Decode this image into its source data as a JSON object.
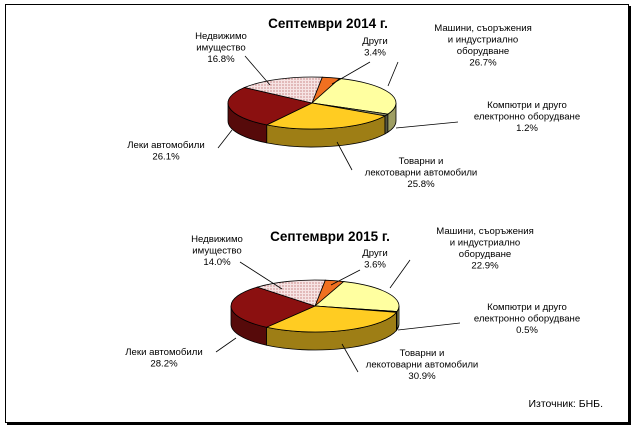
{
  "chart_data": [
    {
      "type": "pie",
      "title": "Септември 2014 г.",
      "slices": [
        {
          "name_lines": [
            "Други"
          ],
          "value": 3.4,
          "value_label": "3.4%",
          "color": "#F07020"
        },
        {
          "name_lines": [
            "Машини, съоръжения",
            "и индустриално",
            "оборудване"
          ],
          "value": 26.7,
          "value_label": "26.7%",
          "color": "#FFFFA0"
        },
        {
          "name_lines": [
            "Компютри и друго",
            "електронно оборудване"
          ],
          "value": 1.2,
          "value_label": "1.2%",
          "color": "#8A8A6A"
        },
        {
          "name_lines": [
            "Товарни и",
            "лекотоварни автомобили"
          ],
          "value": 25.8,
          "value_label": "25.8%",
          "color": "#FFCC22"
        },
        {
          "name_lines": [
            "Леки автомобили"
          ],
          "value": 26.1,
          "value_label": "26.1%",
          "color": "#8B1010"
        },
        {
          "name_lines": [
            "Недвижимо",
            "имущество"
          ],
          "value": 16.8,
          "value_label": "16.8%",
          "color": "#F2DADA"
        }
      ]
    },
    {
      "type": "pie",
      "title": "Септември 2015 г.",
      "slices": [
        {
          "name_lines": [
            "Други"
          ],
          "value": 3.6,
          "value_label": "3.6%",
          "color": "#F07020"
        },
        {
          "name_lines": [
            "Машини, съоръжения",
            "и индустриално",
            "оборудване"
          ],
          "value": 22.9,
          "value_label": "22.9%",
          "color": "#FFFFA0"
        },
        {
          "name_lines": [
            "Компютри и друго",
            "електронно оборудване"
          ],
          "value": 0.5,
          "value_label": "0.5%",
          "color": "#8A8A6A"
        },
        {
          "name_lines": [
            "Товарни и",
            "лекотоварни автомобили"
          ],
          "value": 30.9,
          "value_label": "30.9%",
          "color": "#FFCC22"
        },
        {
          "name_lines": [
            "Леки автомобили"
          ],
          "value": 28.2,
          "value_label": "28.2%",
          "color": "#8B1010"
        },
        {
          "name_lines": [
            "Недвижимо",
            "имущество"
          ],
          "value": 14.0,
          "value_label": "14.0%",
          "color": "#F2DADA"
        }
      ]
    }
  ],
  "source": "Източник: БНБ."
}
